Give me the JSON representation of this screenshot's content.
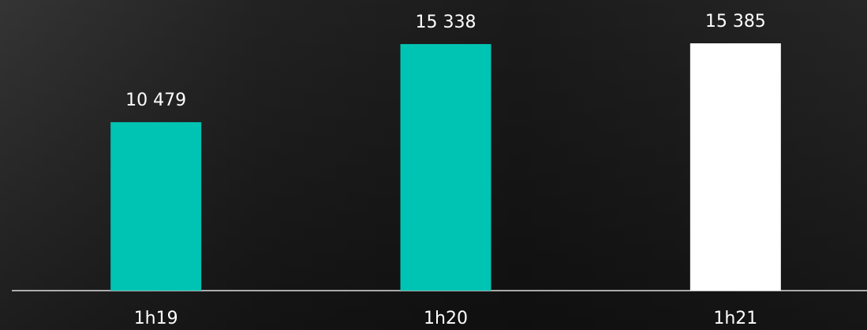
{
  "chart_data": {
    "type": "bar",
    "categories": [
      "1h19",
      "1h20",
      "1h21"
    ],
    "values": [
      10479,
      15338,
      15385
    ],
    "value_labels": [
      "10 479",
      "15 338",
      "15 385"
    ],
    "colors": [
      "#00c4b3",
      "#00c4b3",
      "#ffffff"
    ]
  }
}
